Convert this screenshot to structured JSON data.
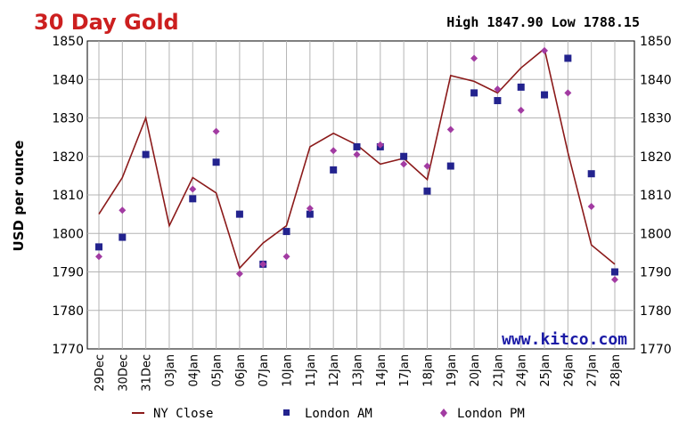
{
  "chart_data": {
    "type": "line",
    "title": "30 Day Gold",
    "high_low": "High 1847.90 Low 1788.15",
    "ylabel": "USD per ounce",
    "watermark": "www.kitco.com",
    "ylim": [
      1770,
      1850
    ],
    "yticks": [
      "1850",
      "1840",
      "1830",
      "1820",
      "1810",
      "1800",
      "1790",
      "1780",
      "1770"
    ],
    "grid": true,
    "legend_position": "bottom",
    "categories": [
      "29Dec",
      "30Dec",
      "31Dec",
      "03Jan",
      "04Jan",
      "05Jan",
      "06Jan",
      "07Jan",
      "10Jan",
      "11Jan",
      "12Jan",
      "13Jan",
      "14Jan",
      "17Jan",
      "18Jan",
      "19Jan",
      "20Jan",
      "21Jan",
      "24Jan",
      "25Jan",
      "26Jan",
      "27Jan",
      "28Jan"
    ],
    "series": [
      {
        "name": "NY Close",
        "kind": "line",
        "color": "#8b1a1a",
        "values": [
          1805,
          1814.5,
          1830,
          1802,
          1814.5,
          1810.5,
          1791,
          1797.5,
          1802,
          1822.5,
          1826,
          1823,
          1818,
          1819.5,
          1814,
          1841,
          1839.5,
          1836.5,
          1843,
          1848,
          1821,
          1797,
          1792
        ]
      },
      {
        "name": "London AM",
        "kind": "square",
        "color": "#23238e",
        "values": [
          1796.5,
          1799,
          1820.5,
          null,
          1809,
          1818.5,
          1805,
          1792,
          1800.5,
          1805,
          1816.5,
          1822.5,
          1822.5,
          1820,
          1811,
          1817.5,
          1836.5,
          1834.5,
          1838,
          1836,
          1845.5,
          1815.5,
          1790
        ]
      },
      {
        "name": "London PM",
        "kind": "diamond",
        "color": "#a23ba2",
        "values": [
          1794,
          1806,
          null,
          null,
          1811.5,
          1826.5,
          1789.5,
          1792,
          1794,
          1806.5,
          1821.5,
          1820.5,
          1823,
          1818,
          1817.5,
          1827,
          1845.5,
          1837.5,
          1832,
          1847.5,
          1836.5,
          1807,
          1788
        ]
      }
    ]
  }
}
